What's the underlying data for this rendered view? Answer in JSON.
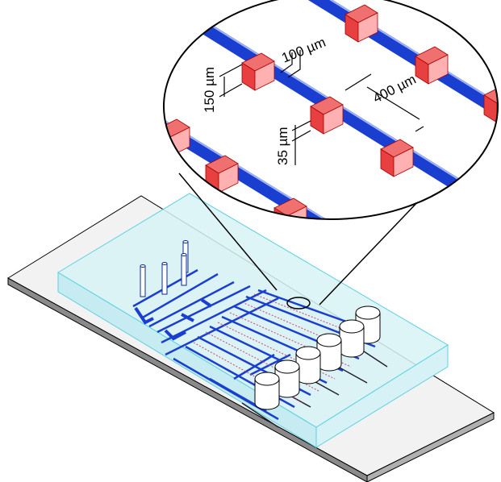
{
  "labels": {
    "width": "100 µm",
    "height": "150 µm",
    "spacing": "400 µm",
    "gap": "35 µm"
  }
}
